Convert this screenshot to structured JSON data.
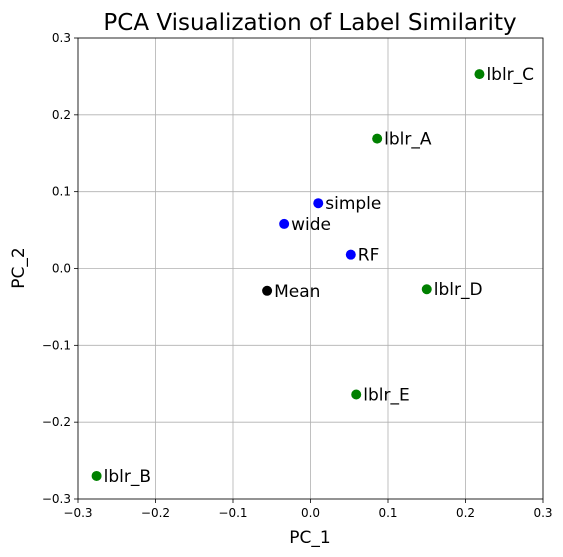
{
  "chart_data": {
    "type": "scatter",
    "title": "PCA Visualization of Label Similarity",
    "xlabel": "PC_1",
    "ylabel": "PC_2",
    "xlim": [
      -0.3,
      0.3
    ],
    "ylim": [
      -0.3,
      0.3
    ],
    "xticks": [
      -0.3,
      -0.2,
      -0.1,
      0.0,
      0.1,
      0.2,
      0.3
    ],
    "yticks": [
      -0.3,
      -0.2,
      -0.1,
      0.0,
      0.1,
      0.2,
      0.3
    ],
    "xtick_labels": [
      "−0.3",
      "−0.2",
      "−0.1",
      "0.0",
      "0.1",
      "0.2",
      "0.3"
    ],
    "ytick_labels": [
      "−0.3",
      "−0.2",
      "−0.1",
      "0.0",
      "0.1",
      "0.2",
      "0.3"
    ],
    "grid": true,
    "points": [
      {
        "label": "lblr_C",
        "x": 0.218,
        "y": 0.253,
        "color": "#008000"
      },
      {
        "label": "lblr_A",
        "x": 0.086,
        "y": 0.169,
        "color": "#008000"
      },
      {
        "label": "simple",
        "x": 0.01,
        "y": 0.085,
        "color": "#0000ff"
      },
      {
        "label": "wide",
        "x": -0.034,
        "y": 0.058,
        "color": "#0000ff"
      },
      {
        "label": "RF",
        "x": 0.052,
        "y": 0.018,
        "color": "#0000ff"
      },
      {
        "label": "Mean",
        "x": -0.056,
        "y": -0.029,
        "color": "#000000"
      },
      {
        "label": "lblr_D",
        "x": 0.15,
        "y": -0.027,
        "color": "#008000"
      },
      {
        "label": "lblr_E",
        "x": 0.059,
        "y": -0.164,
        "color": "#008000"
      },
      {
        "label": "lblr_B",
        "x": -0.276,
        "y": -0.27,
        "color": "#008000"
      }
    ]
  }
}
